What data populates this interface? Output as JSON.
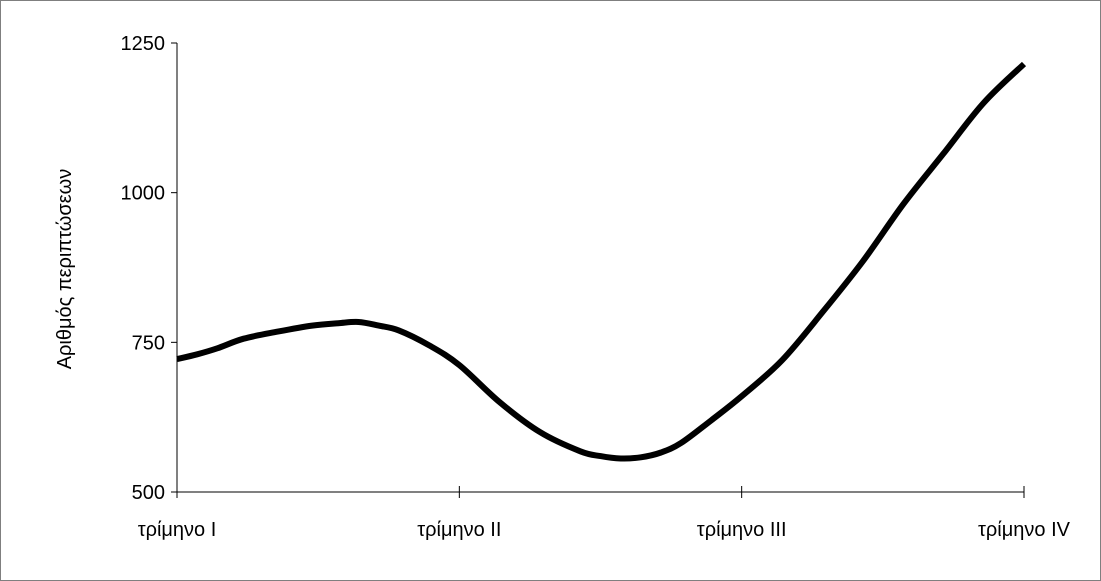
{
  "chart_data": {
    "type": "line",
    "title": "",
    "xlabel": "",
    "ylabel": "Αριθμός περιπτώσεων",
    "categories": [
      "τρίμηνο I",
      "τρίμηνο II",
      "τρίμηνο III",
      "τρίμηνο IV"
    ],
    "y_ticks": [
      "500",
      "750",
      "1000",
      "1250"
    ],
    "ylim": [
      500,
      1250
    ],
    "grid": false,
    "legend": "none",
    "line_color": "#000000",
    "series": [
      {
        "values": [
          722,
          778,
          560,
          1215
        ],
        "curve_samples": [
          [
            0.0,
            722
          ],
          [
            0.1,
            730
          ],
          [
            0.2,
            740
          ],
          [
            0.33,
            756
          ],
          [
            0.5,
            768
          ],
          [
            0.67,
            778
          ],
          [
            0.8,
            782
          ],
          [
            0.9,
            784
          ],
          [
            1.0,
            778
          ],
          [
            1.1,
            770
          ],
          [
            1.25,
            745
          ],
          [
            1.4,
            712
          ],
          [
            1.6,
            650
          ],
          [
            1.8,
            600
          ],
          [
            2.0,
            568
          ],
          [
            2.1,
            560
          ],
          [
            2.2,
            556
          ],
          [
            2.3,
            558
          ],
          [
            2.4,
            566
          ],
          [
            2.5,
            582
          ],
          [
            2.65,
            620
          ],
          [
            2.8,
            660
          ],
          [
            3.0,
            720
          ],
          [
            3.2,
            800
          ],
          [
            3.4,
            885
          ],
          [
            3.6,
            980
          ],
          [
            3.8,
            1065
          ],
          [
            4.0,
            1150
          ],
          [
            4.2,
            1215
          ]
        ]
      }
    ]
  }
}
